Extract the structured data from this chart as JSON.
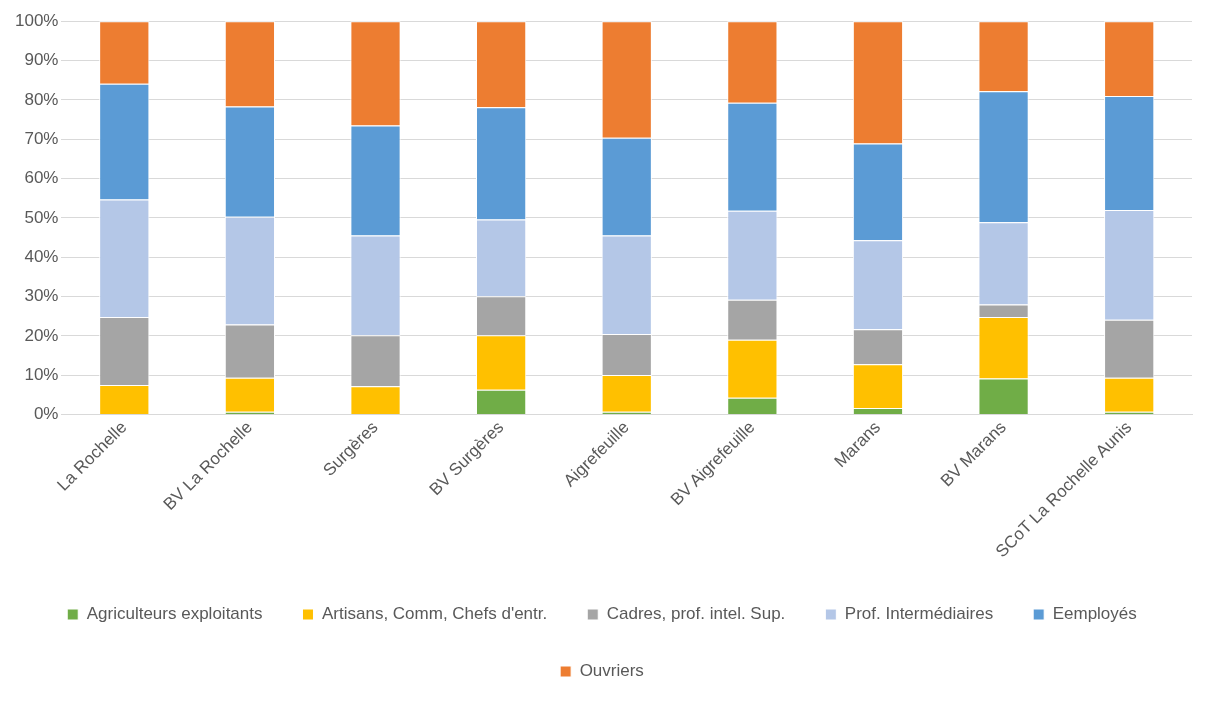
{
  "chart_data": {
    "type": "bar",
    "stacked": true,
    "grid": "y",
    "legend": "bottom",
    "categories": [
      "La Rochelle",
      "BV La Rochelle",
      "Surgères",
      "BV Surgères",
      "Aigrefeuille",
      "BV Aigrefeuille",
      "Marans",
      "BV Marans",
      "SCoT La Rochelle Aunis"
    ],
    "ylim": [
      0,
      100
    ],
    "yticks": [
      {
        "value": 0,
        "label": "0%"
      },
      {
        "value": 10,
        "label": "10%"
      },
      {
        "value": 20,
        "label": "20%"
      },
      {
        "value": 30,
        "label": "30%"
      },
      {
        "value": 40,
        "label": "40%"
      },
      {
        "value": 50,
        "label": "50%"
      },
      {
        "value": 60,
        "label": "60%"
      },
      {
        "value": 70,
        "label": "70%"
      },
      {
        "value": 80,
        "label": "80%"
      },
      {
        "value": 90,
        "label": "90%"
      },
      {
        "value": 100,
        "label": "100%"
      }
    ],
    "series": [
      {
        "name": "Agriculteurs exploitants",
        "color": "#70ad47",
        "values": [
          null,
          0.7,
          null,
          6.3,
          0.7,
          4.3,
          1.7,
          9.2,
          0.7
        ]
      },
      {
        "name": "Artisans, Comm, Chefs d'entr.",
        "color": "#ffc000",
        "values": [
          7.5,
          8.7,
          7.2,
          13.9,
          9.4,
          14.7,
          11.1,
          15.6,
          8.7
        ]
      },
      {
        "name": "Cadres, prof. intel. Sup.",
        "color": "#a5a5a5",
        "values": [
          17.3,
          13.5,
          13.0,
          9.9,
          10.4,
          10.2,
          8.9,
          3.2,
          14.7
        ]
      },
      {
        "name": "Prof. Intermédiaires",
        "color": "#b4c7e7",
        "values": [
          29.9,
          27.4,
          25.3,
          19.5,
          25.0,
          22.6,
          22.6,
          20.9,
          27.9
        ]
      },
      {
        "name": "Eemployés",
        "color": "#5b9bd5",
        "values": [
          29.4,
          28.0,
          28.0,
          28.5,
          24.9,
          27.5,
          24.6,
          33.3,
          29.0
        ]
      },
      {
        "name": "Ouvriers",
        "color": "#ed7d31",
        "values": [
          15.9,
          21.7,
          26.5,
          21.9,
          29.6,
          20.7,
          31.1,
          17.8,
          19.0
        ]
      }
    ]
  }
}
